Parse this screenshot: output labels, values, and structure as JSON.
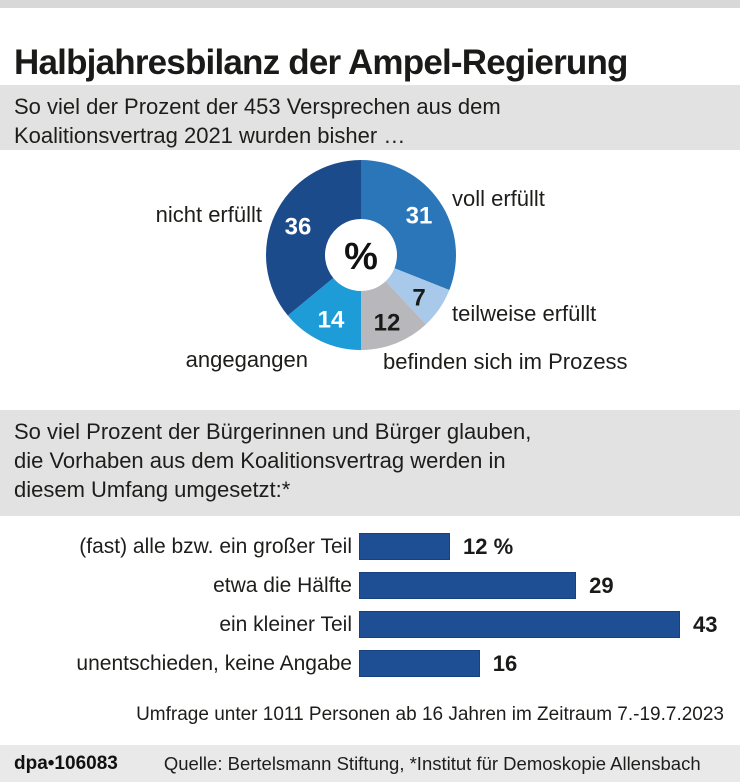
{
  "header": {
    "title": "Halbjahresbilanz der Ampel-Regierung"
  },
  "section1": {
    "line1": "So viel der Prozent der 453 Versprechen aus dem",
    "line2": "Koalitionsvertrag 2021 wurden bisher …"
  },
  "donut": {
    "center_symbol": "%",
    "slices": [
      {
        "label": "voll erfüllt",
        "value": 31,
        "color": "#2b76b8",
        "value_color": "#ffffff"
      },
      {
        "label": "teilweise erfüllt",
        "value": 7,
        "color": "#a8c9e9",
        "value_color": "#1a1a19"
      },
      {
        "label": "befinden sich im Prozess",
        "value": 12,
        "color": "#b8b8bc",
        "value_color": "#1a1a19"
      },
      {
        "label": "angegangen",
        "value": 14,
        "color": "#1e9cd8",
        "value_color": "#ffffff"
      },
      {
        "label": "nicht erfüllt",
        "value": 36,
        "color": "#1c4b8c",
        "value_color": "#ffffff"
      }
    ]
  },
  "section2": {
    "line1": "So viel Prozent der Bürgerinnen und Bürger glauben,",
    "line2": "die Vorhaben aus dem Koalitionsvertrag werden in",
    "line3": "diesem Umfang umgesetzt:*"
  },
  "bar_chart": {
    "rows": [
      {
        "label": "(fast) alle bzw. ein großer Teil",
        "value": 12,
        "display": "12 %"
      },
      {
        "label": "etwa die Hälfte",
        "value": 29,
        "display": "29"
      },
      {
        "label": "ein kleiner Teil",
        "value": 43,
        "display": "43"
      },
      {
        "label": "unentschieden, keine Angabe",
        "value": 16,
        "display": "16"
      }
    ],
    "bar_color": "#1e4e94"
  },
  "footnote": "Umfrage unter 1011 Personen ab 16 Jahren im Zeitraum 7.-19.7.2023",
  "footer": {
    "dpa_id": "dpa•106083",
    "source": "Quelle: Bertelsmann Stiftung, *Institut für Demoskopie Allensbach"
  },
  "chart_data": [
    {
      "type": "pie",
      "subtype": "donut",
      "title": "So viel der Prozent der 453 Versprechen aus dem Koalitionsvertrag 2021 wurden bisher …",
      "labels": [
        "voll erfüllt",
        "teilweise erfüllt",
        "befinden sich im Prozess",
        "angegangen",
        "nicht erfüllt"
      ],
      "values": [
        31,
        7,
        12,
        14,
        36
      ],
      "unit": "%",
      "colors": [
        "#2b76b8",
        "#a8c9e9",
        "#b8b8bc",
        "#1e9cd8",
        "#1c4b8c"
      ],
      "start_angle_deg": 0,
      "direction": "clockwise",
      "center_label": "%"
    },
    {
      "type": "bar",
      "orientation": "horizontal",
      "title": "So viel Prozent der Bürgerinnen und Bürger glauben, die Vorhaben aus dem Koalitionsvertrag werden in diesem Umfang umgesetzt:*",
      "categories": [
        "(fast) alle bzw. ein großer Teil",
        "etwa die Hälfte",
        "ein kleiner Teil",
        "unentschieden, keine Angabe"
      ],
      "values": [
        12,
        29,
        43,
        16
      ],
      "unit": "%",
      "xlim": [
        0,
        45
      ],
      "bar_color": "#1e4e94",
      "legend": false,
      "grid": false,
      "note": "Umfrage unter 1011 Personen ab 16 Jahren im Zeitraum 7.-19.7.2023",
      "source": "Quelle: Bertelsmann Stiftung, *Institut für Demoskopie Allensbach"
    }
  ]
}
